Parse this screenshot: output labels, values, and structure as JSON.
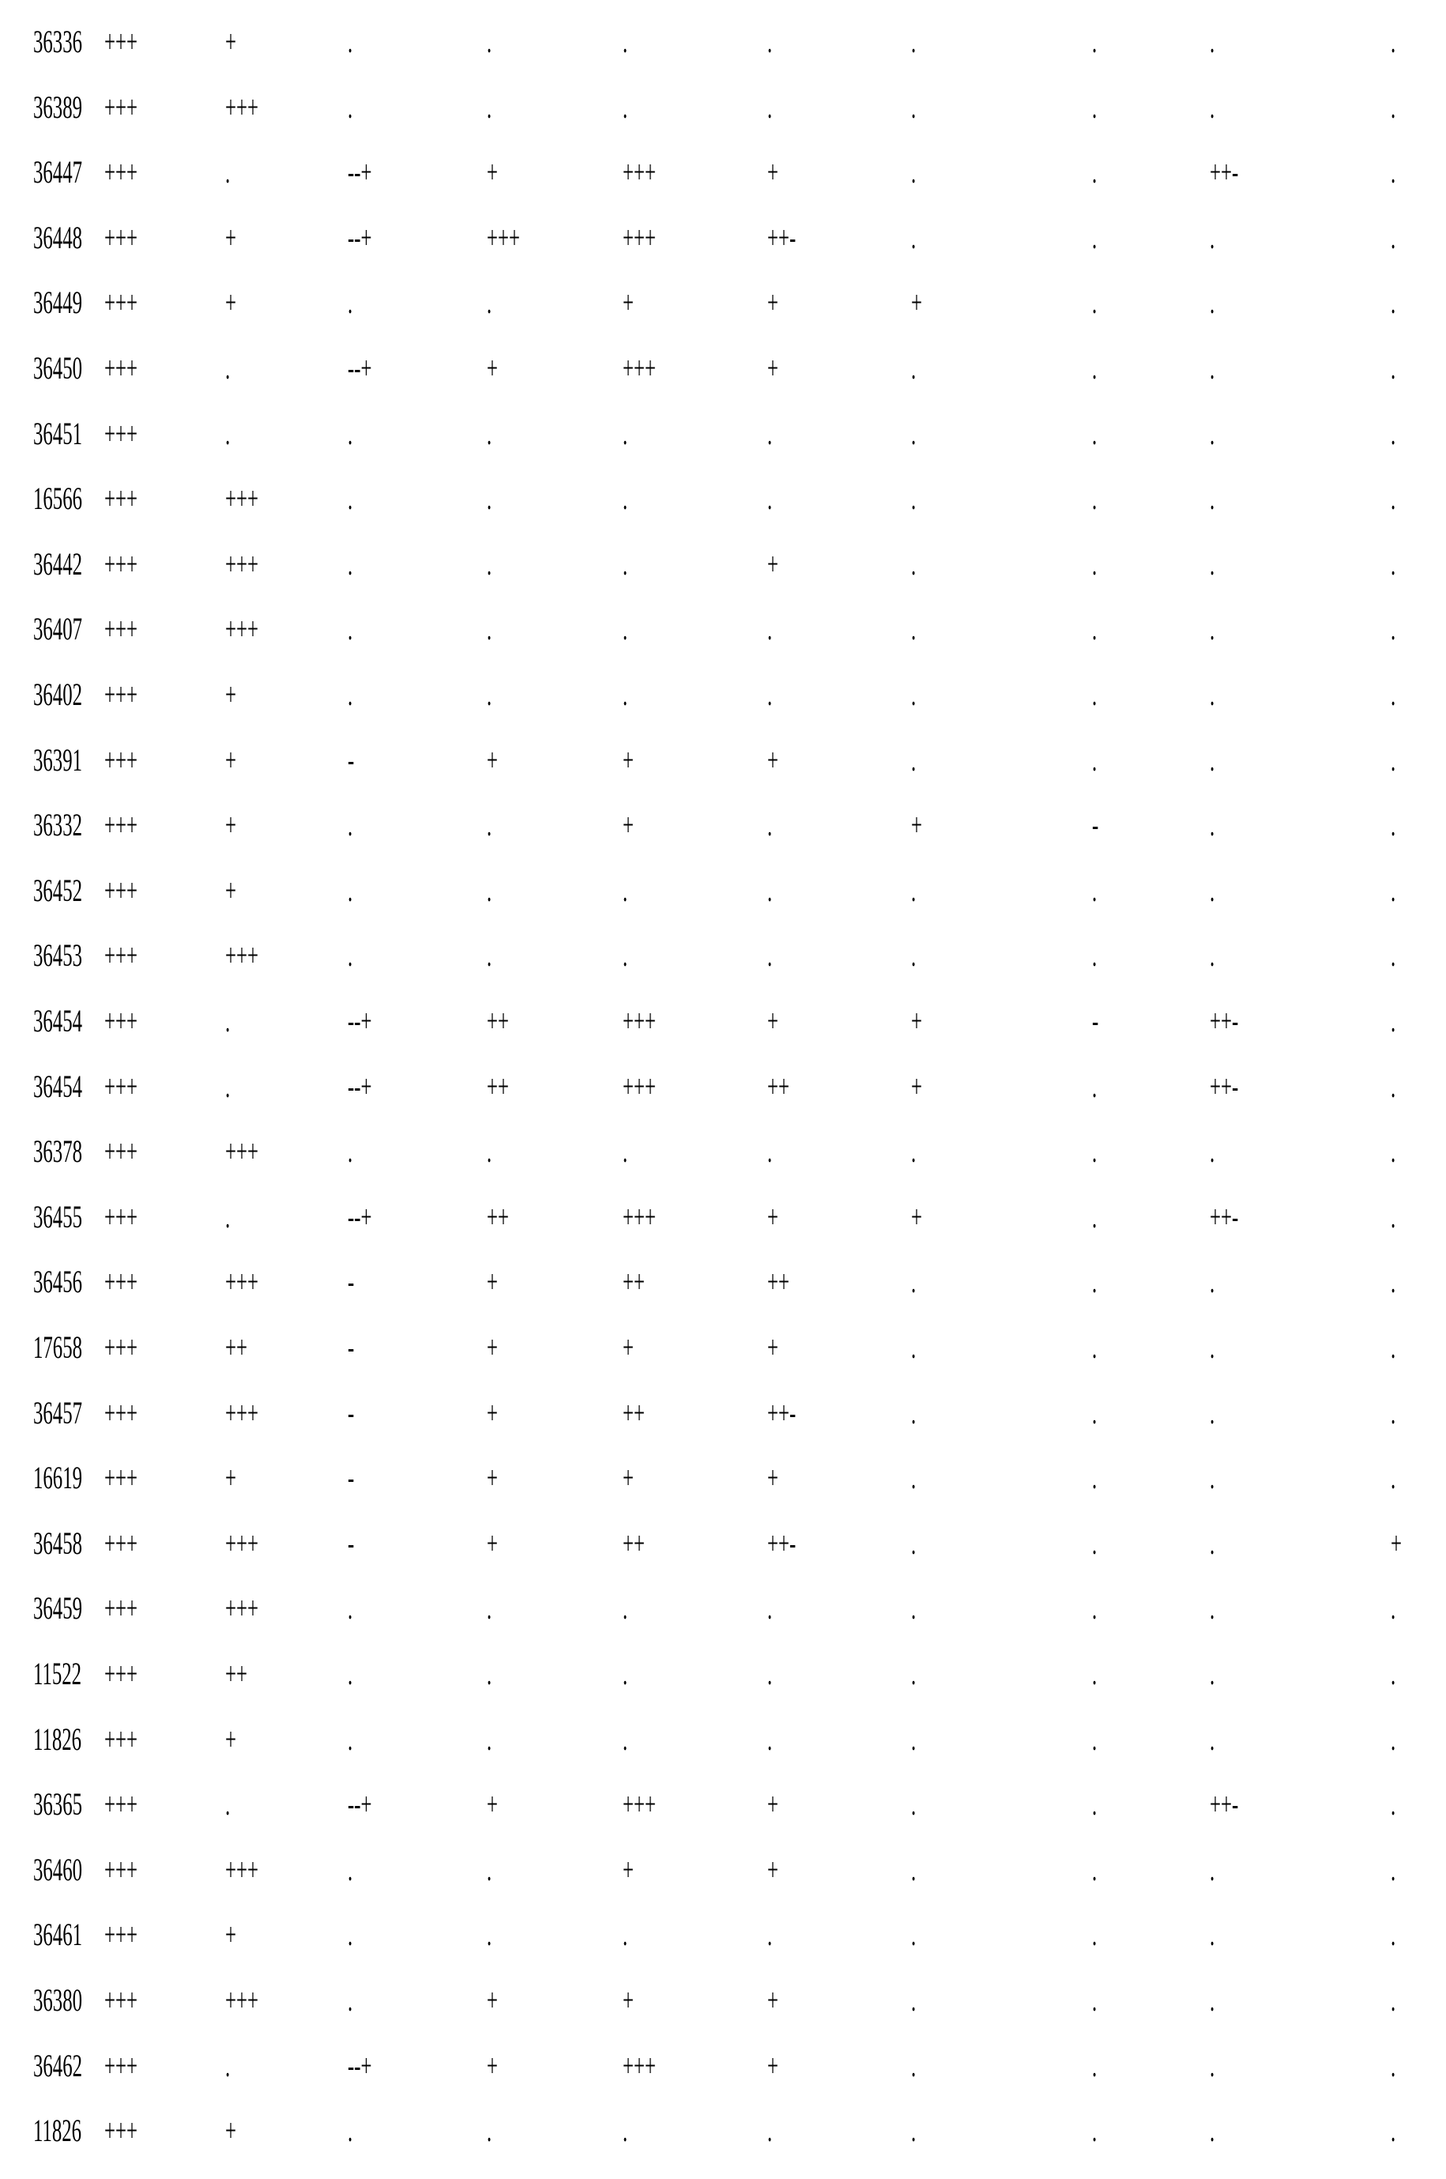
{
  "table": {
    "rows": [
      [
        "36336",
        "+++",
        "+",
        ".",
        ".",
        ".",
        ".",
        ".",
        ".",
        ".",
        "."
      ],
      [
        "36389",
        "+++",
        "+++",
        ".",
        ".",
        ".",
        ".",
        ".",
        ".",
        ".",
        "."
      ],
      [
        "36447",
        "+++",
        ".",
        "--+",
        "+",
        "+++",
        "+",
        ".",
        ".",
        "++-",
        "."
      ],
      [
        "36448",
        "+++",
        "+",
        "--+",
        "+++",
        "+++",
        "++-",
        ".",
        ".",
        ".",
        "."
      ],
      [
        "36449",
        "+++",
        "+",
        ".",
        ".",
        "+",
        "+",
        "+",
        ".",
        ".",
        "."
      ],
      [
        "36450",
        "+++",
        ".",
        "--+",
        "+",
        "+++",
        "+",
        ".",
        ".",
        ".",
        "."
      ],
      [
        "36451",
        "+++",
        ".",
        ".",
        ".",
        ".",
        ".",
        ".",
        ".",
        ".",
        "."
      ],
      [
        "16566",
        "+++",
        "+++",
        ".",
        ".",
        ".",
        ".",
        ".",
        ".",
        ".",
        "."
      ],
      [
        "36442",
        "+++",
        "+++",
        ".",
        ".",
        ".",
        "+",
        ".",
        ".",
        ".",
        "."
      ],
      [
        "36407",
        "+++",
        "+++",
        ".",
        ".",
        ".",
        ".",
        ".",
        ".",
        ".",
        "."
      ],
      [
        "36402",
        "+++",
        "+",
        ".",
        ".",
        ".",
        ".",
        ".",
        ".",
        ".",
        "."
      ],
      [
        "36391",
        "+++",
        "+",
        "-",
        "+",
        "+",
        "+",
        ".",
        ".",
        ".",
        "."
      ],
      [
        "36332",
        "+++",
        "+",
        ".",
        ".",
        "+",
        ".",
        "+",
        "-",
        ".",
        "."
      ],
      [
        "36452",
        "+++",
        "+",
        ".",
        ".",
        ".",
        ".",
        ".",
        ".",
        ".",
        "."
      ],
      [
        "36453",
        "+++",
        "+++",
        ".",
        ".",
        ".",
        ".",
        ".",
        ".",
        ".",
        "."
      ],
      [
        "36454",
        "+++",
        ".",
        "--+",
        "++",
        "+++",
        "+",
        "+",
        "-",
        "++-",
        "."
      ],
      [
        "36454",
        "+++",
        ".",
        "--+",
        "++",
        "+++",
        "++",
        "+",
        ".",
        "++-",
        "."
      ],
      [
        "36378",
        "+++",
        "+++",
        ".",
        ".",
        ".",
        ".",
        ".",
        ".",
        ".",
        "."
      ],
      [
        "36455",
        "+++",
        ".",
        "--+",
        "++",
        "+++",
        "+",
        "+",
        ".",
        "++-",
        "."
      ],
      [
        "36456",
        "+++",
        "+++",
        "-",
        "+",
        "++",
        "++",
        ".",
        ".",
        ".",
        "."
      ],
      [
        "17658",
        "+++",
        "++",
        "-",
        "+",
        "+",
        "+",
        ".",
        ".",
        ".",
        "."
      ],
      [
        "36457",
        "+++",
        "+++",
        "-",
        "+",
        "++",
        "++-",
        ".",
        ".",
        ".",
        "."
      ],
      [
        "16619",
        "+++",
        "+",
        "-",
        "+",
        "+",
        "+",
        ".",
        ".",
        ".",
        "."
      ],
      [
        "36458",
        "+++",
        "+++",
        "-",
        "+",
        "++",
        "++-",
        ".",
        ".",
        ".",
        "+"
      ],
      [
        "36459",
        "+++",
        "+++",
        ".",
        ".",
        ".",
        ".",
        ".",
        ".",
        ".",
        "."
      ],
      [
        "11522",
        "+++",
        "++",
        ".",
        ".",
        ".",
        ".",
        ".",
        ".",
        ".",
        "."
      ],
      [
        "11826",
        "+++",
        "+",
        ".",
        ".",
        ".",
        ".",
        ".",
        ".",
        ".",
        "."
      ],
      [
        "36365",
        "+++",
        ".",
        "--+",
        "+",
        "+++",
        "+",
        ".",
        ".",
        "++-",
        "."
      ],
      [
        "36460",
        "+++",
        "+++",
        ".",
        ".",
        "+",
        "+",
        ".",
        ".",
        ".",
        "."
      ],
      [
        "36461",
        "+++",
        "+",
        ".",
        ".",
        ".",
        ".",
        ".",
        ".",
        ".",
        "."
      ],
      [
        "36380",
        "+++",
        "+++",
        ".",
        "+",
        "+",
        "+",
        ".",
        ".",
        ".",
        "."
      ],
      [
        "36462",
        "+++",
        ".",
        "--+",
        "+",
        "+++",
        "+",
        ".",
        ".",
        ".",
        "."
      ],
      [
        "11826",
        "+++",
        "+",
        ".",
        ".",
        ".",
        ".",
        ".",
        ".",
        ".",
        "."
      ]
    ]
  }
}
